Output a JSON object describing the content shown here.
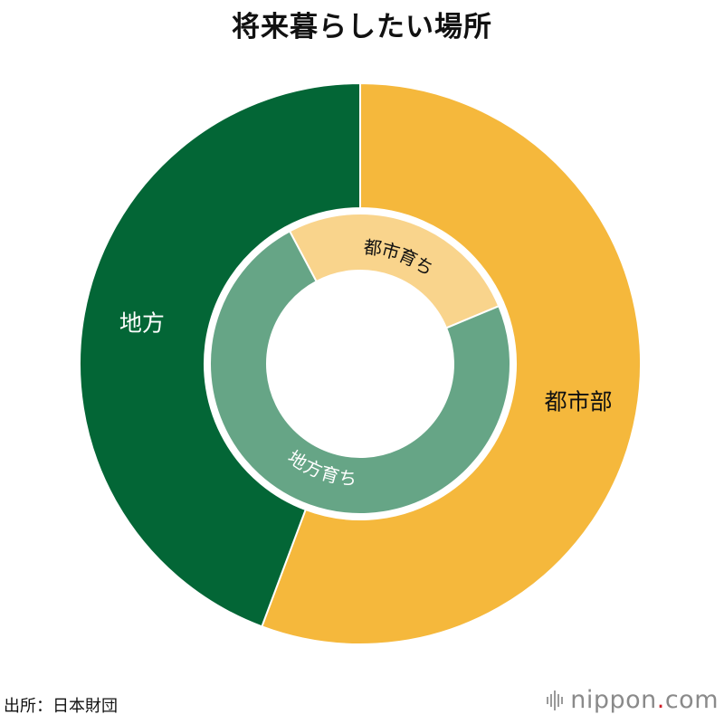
{
  "title": "将来暮らしたい場所",
  "source": "出所：日本財団",
  "brand": {
    "name": "nippon",
    "dot": ".",
    "tld": "com",
    "icon": "nippon-logo-icon"
  },
  "colors": {
    "outer_local": "#036636",
    "outer_urban": "#f5b83c",
    "inner_local": "#66a586",
    "inner_urban": "#f9d48c"
  },
  "chart_data": {
    "type": "pie",
    "variant": "nested-donut",
    "title": "将来暮らしたい場所",
    "rings": [
      {
        "name": "outer",
        "slices": [
          {
            "label": "都市部",
            "value": 55.7
          },
          {
            "label": "地方",
            "value": 44.3
          }
        ]
      },
      {
        "name": "inner",
        "slices": [
          {
            "label": "都市育ち",
            "value": 26.5
          },
          {
            "label": "地方育ち",
            "value": 73.5
          }
        ]
      }
    ]
  }
}
